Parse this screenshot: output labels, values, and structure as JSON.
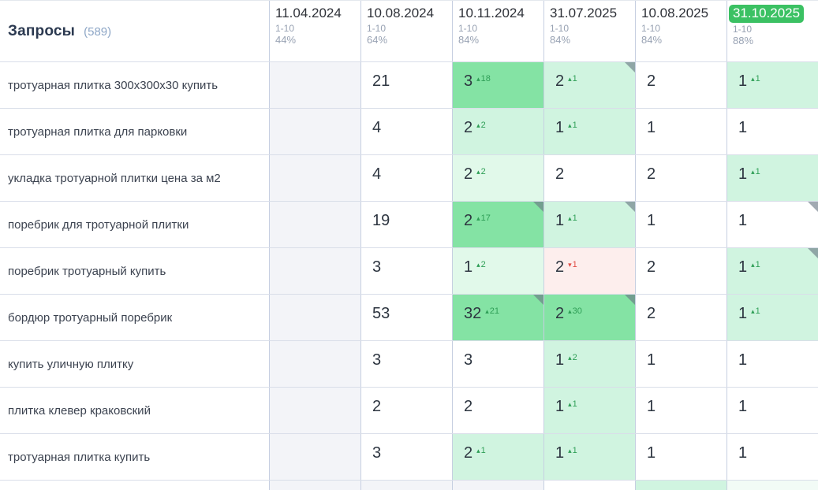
{
  "header": {
    "title": "Запросы",
    "count": "(589)",
    "columns": [
      {
        "date": "11.04.2024",
        "range": "1-10",
        "percent": "44%",
        "highlight": false
      },
      {
        "date": "10.08.2024",
        "range": "1-10",
        "percent": "64%",
        "highlight": false
      },
      {
        "date": "10.11.2024",
        "range": "1-10",
        "percent": "84%",
        "highlight": false
      },
      {
        "date": "31.07.2025",
        "range": "1-10",
        "percent": "84%",
        "highlight": false
      },
      {
        "date": "10.08.2025",
        "range": "1-10",
        "percent": "84%",
        "highlight": false
      },
      {
        "date": "31.10.2025",
        "range": "1-10",
        "percent": "88%",
        "highlight": true
      }
    ]
  },
  "rows": [
    {
      "query": "тротуарная плитка 300х300х30 купить",
      "cells": [
        {
          "value": "",
          "bg": "muted"
        },
        {
          "value": "21",
          "bg": "white"
        },
        {
          "value": "3",
          "change": "18",
          "dir": "up",
          "bg": "strong"
        },
        {
          "value": "2",
          "change": "1",
          "dir": "up",
          "bg": "light",
          "corner": true
        },
        {
          "value": "2",
          "bg": "white"
        },
        {
          "value": "1",
          "change": "1",
          "dir": "up",
          "bg": "light"
        }
      ]
    },
    {
      "query": "тротуарная плитка для парковки",
      "cells": [
        {
          "value": "",
          "bg": "muted"
        },
        {
          "value": "4",
          "bg": "white"
        },
        {
          "value": "2",
          "change": "2",
          "dir": "up",
          "bg": "light"
        },
        {
          "value": "1",
          "change": "1",
          "dir": "up",
          "bg": "light"
        },
        {
          "value": "1",
          "bg": "white"
        },
        {
          "value": "1",
          "bg": "white"
        }
      ]
    },
    {
      "query": "укладка тротуарной плитки цена за м2",
      "cells": [
        {
          "value": "",
          "bg": "muted"
        },
        {
          "value": "4",
          "bg": "white"
        },
        {
          "value": "2",
          "change": "2",
          "dir": "up",
          "bg": "lighter"
        },
        {
          "value": "2",
          "bg": "white"
        },
        {
          "value": "2",
          "bg": "white"
        },
        {
          "value": "1",
          "change": "1",
          "dir": "up",
          "bg": "light"
        }
      ]
    },
    {
      "query": "поребрик для тротуарной плитки",
      "cells": [
        {
          "value": "",
          "bg": "muted"
        },
        {
          "value": "19",
          "bg": "white"
        },
        {
          "value": "2",
          "change": "17",
          "dir": "up",
          "bg": "strong",
          "corner": true
        },
        {
          "value": "1",
          "change": "1",
          "dir": "up",
          "bg": "light",
          "corner": true
        },
        {
          "value": "1",
          "bg": "white"
        },
        {
          "value": "1",
          "bg": "white",
          "corner": true
        }
      ]
    },
    {
      "query": "поребрик тротуарный купить",
      "cells": [
        {
          "value": "",
          "bg": "muted"
        },
        {
          "value": "3",
          "bg": "white"
        },
        {
          "value": "1",
          "change": "2",
          "dir": "up",
          "bg": "lighter"
        },
        {
          "value": "2",
          "change": "1",
          "dir": "down",
          "bg": "red"
        },
        {
          "value": "2",
          "bg": "white"
        },
        {
          "value": "1",
          "change": "1",
          "dir": "up",
          "bg": "light",
          "corner": true
        }
      ]
    },
    {
      "query": "бордюр тротуарный поребрик",
      "cells": [
        {
          "value": "",
          "bg": "muted"
        },
        {
          "value": "53",
          "bg": "white"
        },
        {
          "value": "32",
          "change": "21",
          "dir": "up",
          "bg": "strong",
          "corner": true
        },
        {
          "value": "2",
          "change": "30",
          "dir": "up",
          "bg": "strong",
          "corner": true
        },
        {
          "value": "2",
          "bg": "white"
        },
        {
          "value": "1",
          "change": "1",
          "dir": "up",
          "bg": "light"
        }
      ]
    },
    {
      "query": "купить уличную плитку",
      "cells": [
        {
          "value": "",
          "bg": "muted"
        },
        {
          "value": "3",
          "bg": "white"
        },
        {
          "value": "3",
          "bg": "white"
        },
        {
          "value": "1",
          "change": "2",
          "dir": "up",
          "bg": "light"
        },
        {
          "value": "1",
          "bg": "white"
        },
        {
          "value": "1",
          "bg": "white"
        }
      ]
    },
    {
      "query": "плитка клевер краковский",
      "cells": [
        {
          "value": "",
          "bg": "muted"
        },
        {
          "value": "2",
          "bg": "white"
        },
        {
          "value": "2",
          "bg": "white"
        },
        {
          "value": "1",
          "change": "1",
          "dir": "up",
          "bg": "light"
        },
        {
          "value": "1",
          "bg": "white"
        },
        {
          "value": "1",
          "bg": "white"
        }
      ]
    },
    {
      "query": "тротуарная плитка купить",
      "cells": [
        {
          "value": "",
          "bg": "muted"
        },
        {
          "value": "3",
          "bg": "white"
        },
        {
          "value": "2",
          "change": "1",
          "dir": "up",
          "bg": "light"
        },
        {
          "value": "1",
          "change": "1",
          "dir": "up",
          "bg": "light"
        },
        {
          "value": "1",
          "bg": "white"
        },
        {
          "value": "1",
          "bg": "white"
        }
      ]
    }
  ],
  "partial_row": {
    "cells": [
      {
        "value": "",
        "bg": "muted"
      },
      {
        "value": "",
        "bg": "muted"
      },
      {
        "value": "",
        "bg": "muted"
      },
      {
        "value": "",
        "bg": "white"
      },
      {
        "value": "",
        "bg": "light"
      },
      {
        "value": "",
        "bg": "faint"
      }
    ]
  },
  "icons": {
    "up_arrow": "▴",
    "down_arrow": "▾",
    "corner_marker": "corner-note-marker"
  },
  "colors": {
    "highlight_badge": "#3bc163",
    "change_up": "#2e9e56",
    "change_down": "#e14b44",
    "cell_green_strong": "#84e3a4",
    "cell_green_light": "#d0f4e0",
    "cell_green_lighter": "#e1f9ea",
    "cell_red_light": "#fdeeed",
    "cell_empty_muted": "#f3f4f8"
  }
}
